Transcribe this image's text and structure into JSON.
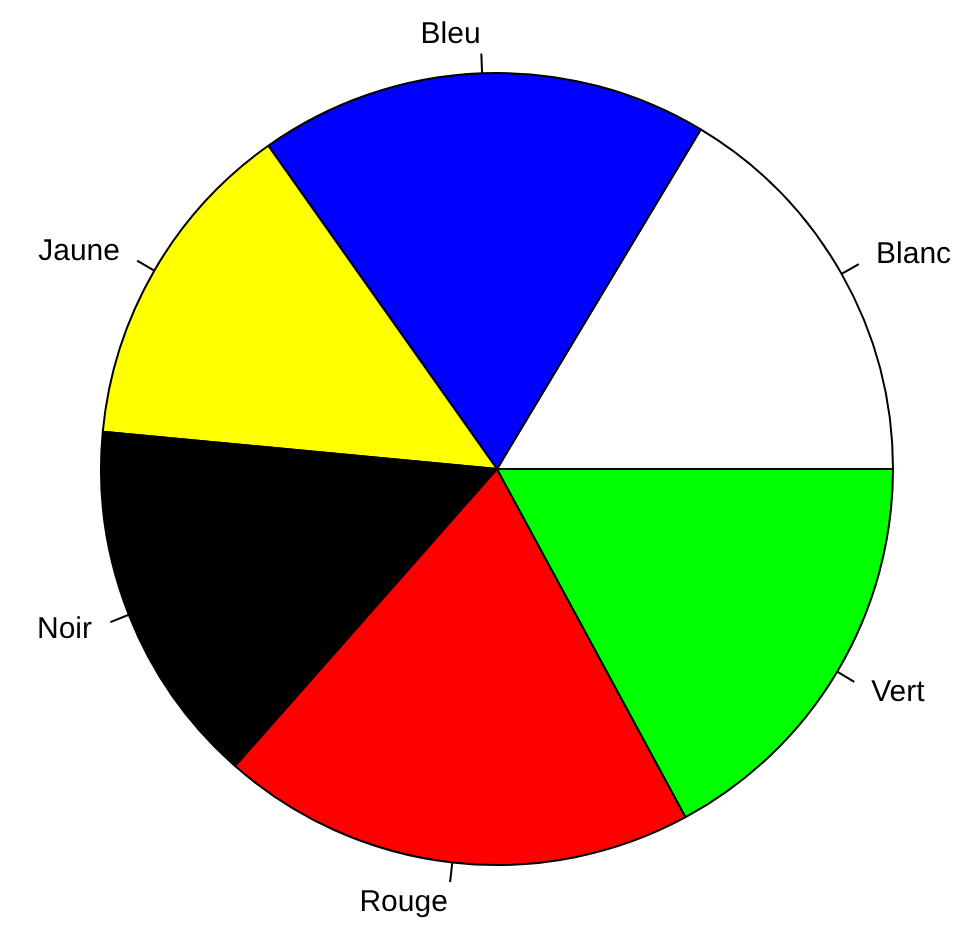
{
  "chart_data": {
    "type": "pie",
    "categories": [
      "Blanc",
      "Bleu",
      "Jaune",
      "Noir",
      "Rouge",
      "Vert"
    ],
    "values": [
      16.4,
      18.4,
      13.7,
      15.0,
      19.4,
      17.1
    ],
    "colors": [
      "#ffffff",
      "#0000ff",
      "#ffff00",
      "#000000",
      "#ff0000",
      "#00ff00"
    ]
  }
}
